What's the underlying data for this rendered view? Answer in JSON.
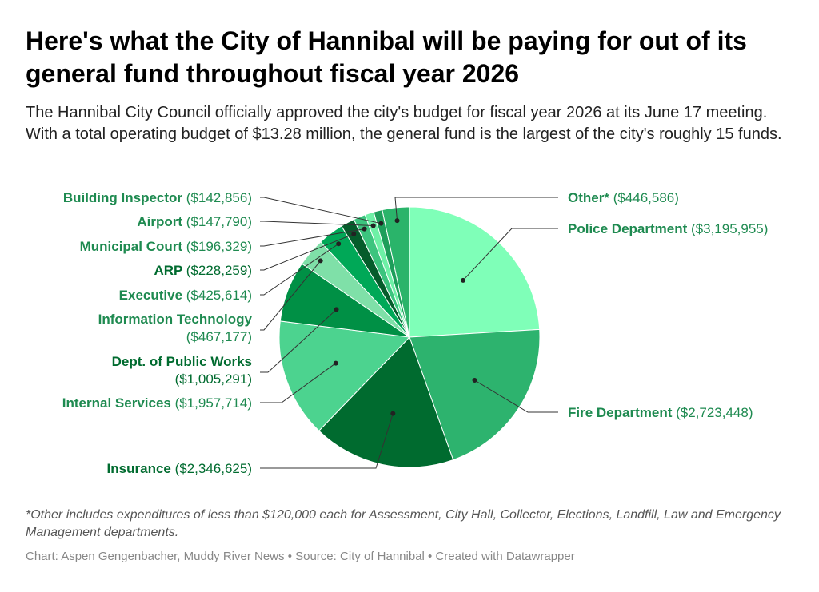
{
  "title": "Here's what the City of Hannibal will be paying for out of its general fund throughout fiscal year 2026",
  "subtitle": "The Hannibal City Council officially approved the city's budget for fiscal year 2026 at its June 17 meeting. With a total operating budget of $13.28 million, the general fund is the largest of the city's roughly 15 funds.",
  "note": "*Other includes expenditures of less than $120,000 each for Assessment, City Hall, Collector, Elections, Landfill, Law and Emergency Management departments.",
  "footer": {
    "credit_label": "Chart: ",
    "credit": "Aspen Gengenbacher, Muddy River News",
    "source_label": "Source: ",
    "source": "City of Hannibal",
    "tool": "Created with Datawrapper"
  },
  "chart_data": {
    "type": "pie",
    "title": "Here's what the City of Hannibal will be paying for out of its general fund throughout fiscal year 2026",
    "start_angle_deg": 0,
    "direction": "clockwise",
    "slices": [
      {
        "name": "Police Department",
        "value": 3195955,
        "value_label": "($3,195,955)",
        "color": "#7fffb8",
        "label_color": "#1e8a50"
      },
      {
        "name": "Fire Department",
        "value": 2723448,
        "value_label": "($2,723,448)",
        "color": "#2db36e",
        "label_color": "#1e8a50"
      },
      {
        "name": "Insurance",
        "value": 2346625,
        "value_label": "($2,346,625)",
        "color": "#006b2f",
        "label_color": "#006b2f"
      },
      {
        "name": "Internal Services",
        "value": 1957714,
        "value_label": "($1,957,714)",
        "color": "#4cd38f",
        "label_color": "#1e8a50"
      },
      {
        "name": "Dept. of Public Works",
        "value": 1005291,
        "value_label": "($1,005,291)",
        "color": "#009045",
        "label_color": "#006b2f"
      },
      {
        "name": "Information Technology",
        "value": 467177,
        "value_label": "($467,177)",
        "color": "#7fe0a8",
        "label_color": "#1e8a50"
      },
      {
        "name": "Executive",
        "value": 425614,
        "value_label": "($425,614)",
        "color": "#00a857",
        "label_color": "#1e8a50"
      },
      {
        "name": "ARP",
        "value": 228259,
        "value_label": "($228,259)",
        "color": "#055c2b",
        "label_color": "#006b2f"
      },
      {
        "name": "Municipal Court",
        "value": 196329,
        "value_label": "($196,329)",
        "color": "#3cc47e",
        "label_color": "#1e8a50"
      },
      {
        "name": "Airport",
        "value": 147790,
        "value_label": "($147,790)",
        "color": "#6ef0a6",
        "label_color": "#1e8a50"
      },
      {
        "name": "Building Inspector",
        "value": 142856,
        "value_label": "($142,856)",
        "color": "#1d9e5a",
        "label_color": "#1e8a50"
      },
      {
        "name": "Other*",
        "value": 446586,
        "value_label": "($446,586)",
        "color": "#2ab46a",
        "label_color": "#1e8a50"
      }
    ]
  }
}
